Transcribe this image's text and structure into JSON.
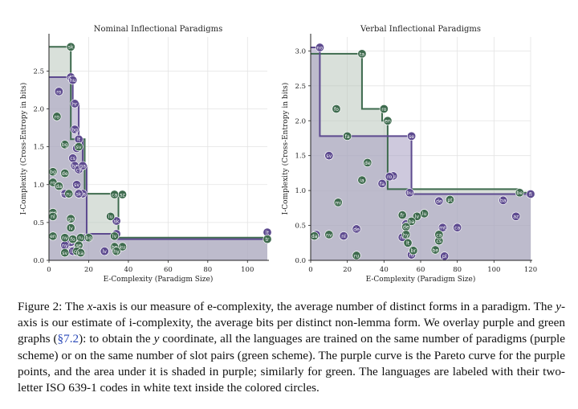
{
  "colors": {
    "purple": "#5d4a8f",
    "green": "#3e6b4e",
    "purpleFill": "#a59cc1",
    "greenFill": "#b9c7bc"
  },
  "chart_data": [
    {
      "type": "scatter",
      "title": "Nominal Inflectional Paradigms",
      "xlabel": "E-Complexity (Paradigm Size)",
      "ylabel": "I-Complexity (Cross-Entropy in bits)",
      "xlim": [
        0,
        110
      ],
      "ylim": [
        0,
        2.95
      ],
      "xticks": [
        "0",
        "20",
        "40",
        "60",
        "80",
        "100"
      ],
      "yticks": [
        "0.0",
        "0.5",
        "1.0",
        "1.5",
        "2.0",
        "2.5"
      ],
      "grid": true,
      "pareto_purple": [
        [
          0,
          2.42
        ],
        [
          12,
          2.42
        ],
        [
          12,
          2.07
        ],
        [
          15,
          2.07
        ],
        [
          15,
          1.6
        ],
        [
          17,
          1.6
        ],
        [
          17,
          1.25
        ],
        [
          19,
          1.25
        ],
        [
          19,
          0.35
        ],
        [
          34,
          0.35
        ],
        [
          34,
          0.28
        ],
        [
          110,
          0.28
        ],
        [
          110,
          0.37
        ]
      ],
      "pareto_green": [
        [
          0,
          2.82
        ],
        [
          11,
          2.82
        ],
        [
          11,
          1.6
        ],
        [
          18,
          1.6
        ],
        [
          18,
          0.88
        ],
        [
          35,
          0.88
        ],
        [
          35,
          0.3
        ],
        [
          110,
          0.3
        ],
        [
          110,
          0.28
        ]
      ],
      "series": [
        {
          "name": "purple",
          "points": [
            [
              11,
              2.42,
              "de"
            ],
            [
              12,
              2.38,
              "hu"
            ],
            [
              5,
              2.23,
              "ro"
            ],
            [
              13,
              2.07,
              "hr"
            ],
            [
              13,
              1.73,
              "bg"
            ],
            [
              15,
              1.6,
              "lt"
            ],
            [
              14,
              1.48,
              "sl"
            ],
            [
              12,
              1.35,
              "cs"
            ],
            [
              13,
              1.25,
              "ba"
            ],
            [
              15,
              1.2,
              "cy"
            ],
            [
              17,
              1.25,
              "ga"
            ],
            [
              14,
              1.0,
              "sv"
            ],
            [
              17,
              0.88,
              "da"
            ],
            [
              15,
              0.88,
              "sk"
            ],
            [
              8,
              0.88,
              "mn"
            ],
            [
              34,
              0.52,
              "sk"
            ],
            [
              34,
              0.35,
              "lv"
            ],
            [
              17,
              0.3,
              "fi"
            ],
            [
              11,
              0.24,
              "fo"
            ],
            [
              8,
              0.2,
              "ny"
            ],
            [
              12,
              0.12,
              "la"
            ],
            [
              28,
              0.12,
              "lv"
            ],
            [
              110,
              0.37,
              "lt"
            ]
          ]
        },
        {
          "name": "green",
          "points": [
            [
              11,
              2.82,
              "sk"
            ],
            [
              4,
              1.9,
              "ro"
            ],
            [
              8,
              1.53,
              "bg"
            ],
            [
              15,
              1.5,
              "sv"
            ],
            [
              2,
              1.17,
              "bg"
            ],
            [
              8,
              1.15,
              "de"
            ],
            [
              2,
              1.03,
              "ro"
            ],
            [
              5,
              0.98,
              "da"
            ],
            [
              10,
              0.88,
              "ru"
            ],
            [
              33,
              0.87,
              "ca"
            ],
            [
              37,
              0.87,
              "sz"
            ],
            [
              2,
              0.63,
              "mn"
            ],
            [
              2,
              0.58,
              "nl"
            ],
            [
              11,
              0.55,
              "ga"
            ],
            [
              11,
              0.43,
              "lv"
            ],
            [
              12,
              0.28,
              "fo"
            ],
            [
              16,
              0.3,
              "ru"
            ],
            [
              20,
              0.3,
              "bg"
            ],
            [
              2,
              0.32,
              "en"
            ],
            [
              8,
              0.3,
              "nv"
            ],
            [
              33,
              0.32,
              "lv"
            ],
            [
              15,
              0.2,
              "se"
            ],
            [
              14,
              0.12,
              "ca"
            ],
            [
              8,
              0.1,
              "sv"
            ],
            [
              16,
              0.1,
              "ka"
            ],
            [
              33,
              0.18,
              "be"
            ],
            [
              37,
              0.18,
              "ku"
            ],
            [
              34,
              0.12,
              "hy"
            ],
            [
              110,
              0.28,
              "tr"
            ],
            [
              31,
              0.58,
              "lu"
            ]
          ]
        }
      ]
    },
    {
      "type": "scatter",
      "title": "Verbal Inflectional Paradigms",
      "xlabel": "E-Complexity (Paradigm Size)",
      "ylabel": "I-Complexity (Cross-Entropy in bits)",
      "xlim": [
        0,
        120
      ],
      "ylim": [
        0,
        3.2
      ],
      "xticks": [
        "0",
        "20",
        "40",
        "60",
        "80",
        "100",
        "120"
      ],
      "yticks": [
        "0.0",
        "0.5",
        "1.0",
        "1.5",
        "2.0",
        "2.5",
        "3.0"
      ],
      "grid": true,
      "pareto_purple": [
        [
          0,
          3.05
        ],
        [
          5,
          3.05
        ],
        [
          5,
          1.78
        ],
        [
          55,
          1.78
        ],
        [
          55,
          0.95
        ],
        [
          120,
          0.95
        ],
        [
          120,
          0.97
        ]
      ],
      "pareto_green": [
        [
          0,
          2.96
        ],
        [
          28,
          2.96
        ],
        [
          28,
          2.17
        ],
        [
          39,
          2.17
        ],
        [
          39,
          2.0
        ],
        [
          42,
          2.0
        ],
        [
          42,
          1.02
        ],
        [
          114,
          1.02
        ],
        [
          114,
          0.97
        ],
        [
          120,
          0.97
        ]
      ],
      "series": [
        {
          "name": "purple",
          "points": [
            [
              5,
              3.05,
              "no"
            ],
            [
              55,
              1.78,
              "se"
            ],
            [
              10,
              1.5,
              "sv"
            ],
            [
              45,
              1.21,
              "ru"
            ],
            [
              54,
              0.97,
              "bu"
            ],
            [
              70,
              0.85,
              "de"
            ],
            [
              105,
              0.86,
              "ba"
            ],
            [
              112,
              0.63,
              "az"
            ],
            [
              80,
              0.47,
              "ca"
            ],
            [
              52,
              0.52,
              "fi"
            ],
            [
              50,
              0.33,
              "ro"
            ],
            [
              3,
              0.37,
              "en"
            ],
            [
              18,
              0.35,
              "nl"
            ],
            [
              25,
              0.45,
              "de"
            ],
            [
              72,
              0.47,
              "mt"
            ],
            [
              55,
              0.08,
              "ru"
            ],
            [
              73,
              0.06,
              "pl"
            ],
            [
              120,
              0.95,
              "fi"
            ],
            [
              43,
              1.2,
              "ro"
            ],
            [
              39,
              1.1,
              "fa"
            ]
          ]
        },
        {
          "name": "green",
          "points": [
            [
              28,
              2.96,
              "ta"
            ],
            [
              40,
              2.17,
              "ro"
            ],
            [
              42,
              2.0,
              "en"
            ],
            [
              20,
              1.78,
              "fa"
            ],
            [
              14,
              2.17,
              "fo"
            ],
            [
              31,
              1.4,
              "de"
            ],
            [
              28,
              1.15,
              "ia"
            ],
            [
              15,
              0.83,
              "mi"
            ],
            [
              10,
              0.37,
              "nv"
            ],
            [
              2,
              0.35,
              "da"
            ],
            [
              62,
              0.67,
              "lu"
            ],
            [
              58,
              0.63,
              "lv"
            ],
            [
              55,
              0.56,
              "ba"
            ],
            [
              50,
              0.65,
              "fr"
            ],
            [
              52,
              0.48,
              "de"
            ],
            [
              52,
              0.37,
              "hy"
            ],
            [
              53,
              0.25,
              "lt"
            ],
            [
              70,
              0.28,
              "cs"
            ],
            [
              70,
              0.37,
              "ca"
            ],
            [
              68,
              0.15,
              "be"
            ],
            [
              76,
              0.87,
              "pt"
            ],
            [
              25,
              0.07,
              "ru"
            ],
            [
              56,
              0.14,
              "br"
            ],
            [
              114,
              0.97,
              "be"
            ]
          ]
        }
      ]
    }
  ],
  "caption": {
    "p1": "Figure 2: The ",
    "x": "x",
    "p2": "-axis is our measure of e-complexity, the average number of distinct forms in a paradigm. The ",
    "y1": "y",
    "p3": "-axis is our estimate of i-complexity, the average bits per distinct non-lemma form. We overlay purple and green graphs (",
    "ref": "§7.2",
    "p4": "): to obtain the ",
    "y2": "y",
    "p5": " coordinate, all the languages are trained on the same number of paradigms (purple scheme) or on the same number of slot pairs (green scheme). The purple curve is the Pareto curve for the purple points, and the area under it is shaded in purple; similarly for green. The languages are labeled with their two-letter ISO 639-1 codes in white text inside the colored circles."
  }
}
